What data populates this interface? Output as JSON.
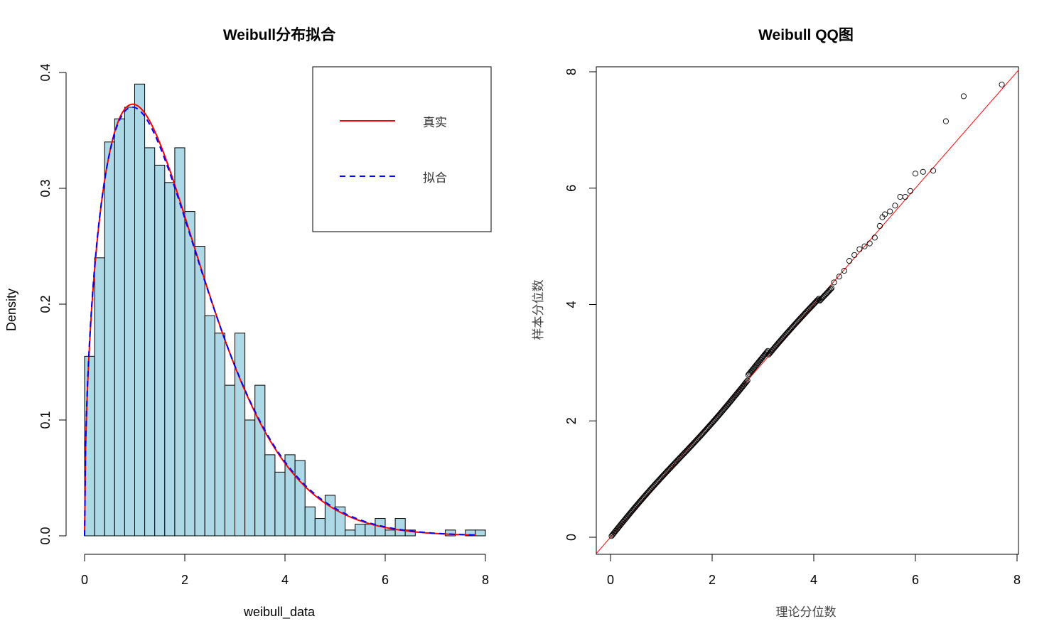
{
  "chart_data": [
    {
      "type": "bar",
      "subtype": "histogram-with-density-curves",
      "title": "Weibull分布拟合",
      "xlabel": "weibull_data",
      "ylabel": "Density",
      "xlim": [
        0,
        8
      ],
      "ylim": [
        0,
        0.4
      ],
      "x_ticks": [
        "0",
        "2",
        "4",
        "6",
        "8"
      ],
      "y_ticks": [
        "0.0",
        "0.1",
        "0.2",
        "0.3",
        "0.4"
      ],
      "bin_width": 0.2,
      "bin_start": 0,
      "values": [
        0.155,
        0.24,
        0.34,
        0.36,
        0.37,
        0.39,
        0.335,
        0.32,
        0.305,
        0.335,
        0.28,
        0.25,
        0.19,
        0.175,
        0.13,
        0.175,
        0.1,
        0.13,
        0.07,
        0.055,
        0.07,
        0.065,
        0.025,
        0.015,
        0.035,
        0.025,
        0.005,
        0.01,
        0.01,
        0.015,
        0.005,
        0.015,
        0.005,
        0.0,
        0.0,
        0.0,
        0.005,
        0.0,
        0.005,
        0.005
      ],
      "bar_color": "#add8e6",
      "series": [
        {
          "name": "真实",
          "color": "#ff0000",
          "style": "solid",
          "shape": 1.5,
          "scale": 2.0
        },
        {
          "name": "拟合",
          "color": "#0000ff",
          "style": "dashed",
          "shape": 1.49,
          "scale": 2.01
        }
      ],
      "legend": {
        "position": "top-right",
        "items": [
          "真实",
          "拟合"
        ]
      }
    },
    {
      "type": "scatter",
      "subtype": "qq-plot",
      "title": "Weibull QQ图",
      "xlabel": "理论分位数",
      "ylabel": "样本分位数",
      "xlim": [
        0,
        8
      ],
      "ylim": [
        0,
        8
      ],
      "x_ticks": [
        "0",
        "2",
        "4",
        "6",
        "8"
      ],
      "y_ticks": [
        "0",
        "2",
        "4",
        "6",
        "8"
      ],
      "reference_line": {
        "slope": 1,
        "intercept": 0,
        "color": "#ff0000"
      },
      "sample_count": 1000,
      "tail_points": [
        [
          4.4,
          4.38
        ],
        [
          4.5,
          4.48
        ],
        [
          4.6,
          4.58
        ],
        [
          4.7,
          4.75
        ],
        [
          4.8,
          4.85
        ],
        [
          4.9,
          4.95
        ],
        [
          5.0,
          5.0
        ],
        [
          5.1,
          5.05
        ],
        [
          5.2,
          5.15
        ],
        [
          5.3,
          5.35
        ],
        [
          5.35,
          5.5
        ],
        [
          5.4,
          5.55
        ],
        [
          5.5,
          5.6
        ],
        [
          5.6,
          5.7
        ],
        [
          5.7,
          5.85
        ],
        [
          5.8,
          5.85
        ],
        [
          5.9,
          5.95
        ],
        [
          6.0,
          6.25
        ],
        [
          6.15,
          6.28
        ],
        [
          6.35,
          6.3
        ],
        [
          6.6,
          7.15
        ],
        [
          6.95,
          7.58
        ],
        [
          7.7,
          7.78
        ]
      ]
    }
  ]
}
